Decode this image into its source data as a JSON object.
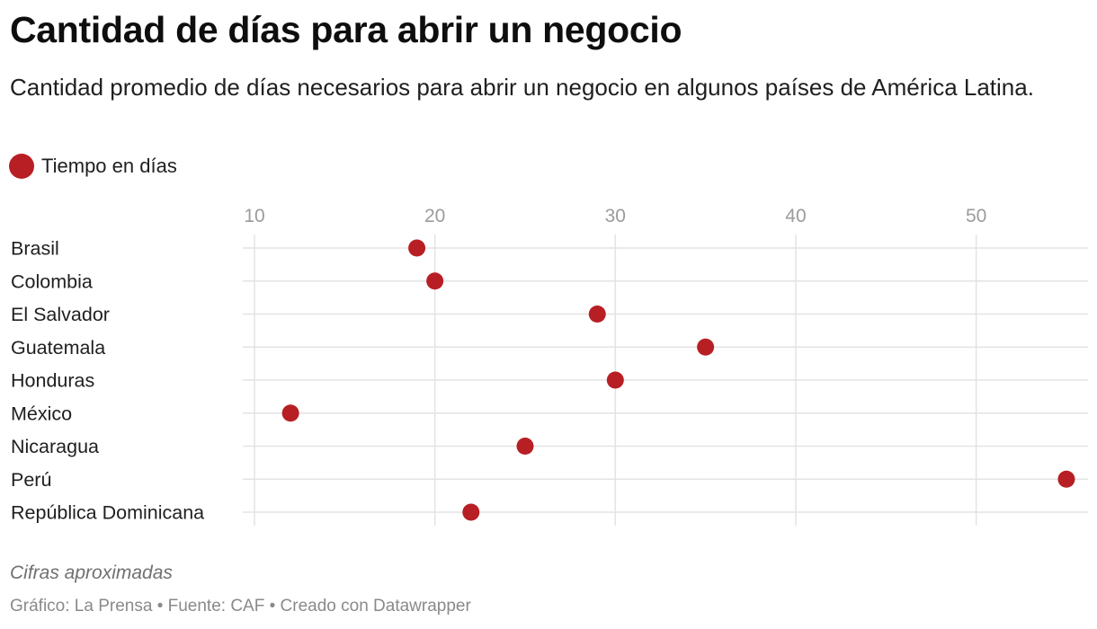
{
  "header": {
    "title": "Cantidad de días para abrir un negocio",
    "subtitle": "Cantidad promedio de días necesarios para abrir un negocio en algunos países de América Latina."
  },
  "legend": {
    "label": "Tiempo en días",
    "color": "#b71f24"
  },
  "chart_data": {
    "type": "scatter",
    "title": "Cantidad de días para abrir un negocio",
    "subtitle": "Cantidad promedio de días necesarios para abrir un negocio en algunos países de América Latina.",
    "xlabel": "",
    "ylabel": "",
    "xlim": [
      10,
      55.5
    ],
    "x_ticks": [
      10,
      20,
      30,
      40,
      50
    ],
    "grid": true,
    "legend_position": "top-left",
    "categories": [
      "Brasil",
      "Colombia",
      "El Salvador",
      "Guatemala",
      "Honduras",
      "México",
      "Nicaragua",
      "Perú",
      "República Dominicana"
    ],
    "series": [
      {
        "name": "Tiempo en días",
        "color": "#b71f24",
        "values": [
          19,
          20,
          29,
          35,
          30,
          12,
          25,
          55,
          22
        ]
      }
    ]
  },
  "footer": {
    "notes": "Cifras aproximadas",
    "credit": "Gráfico: La Prensa • Fuente: CAF • Creado con Datawrapper"
  },
  "colors": {
    "dot": "#b71f24",
    "grid": "#e3e3e3",
    "tick_label": "#9b9b9b"
  }
}
